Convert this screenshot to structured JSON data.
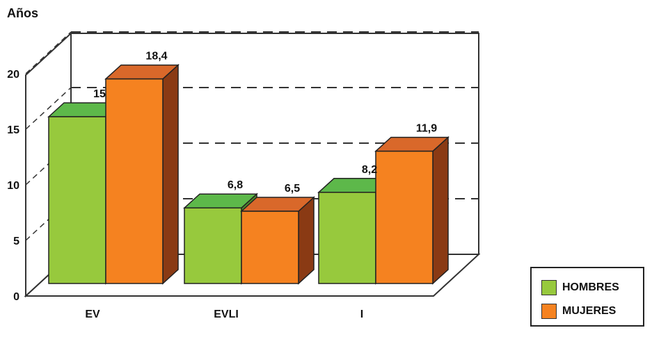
{
  "colors": {
    "hombres_front": "#97c93d",
    "hombres_top": "#5db84a",
    "hombres_side": "#4f8a2a",
    "mujeres_front": "#f58220",
    "mujeres_top": "#d9682a",
    "mujeres_side": "#8a3a14"
  },
  "chart_data": {
    "type": "bar",
    "ylabel": "Años",
    "ylim": [
      0,
      20
    ],
    "yticks": [
      0,
      5,
      10,
      15,
      20
    ],
    "grid": true,
    "legend_position": "bottom-right",
    "categories": [
      "EV",
      "EVLI",
      "I"
    ],
    "series": [
      {
        "name": "HOMBRES",
        "values": [
          15,
          6.8,
          8.2
        ],
        "labels": [
          "15",
          "6,8",
          "8,2"
        ]
      },
      {
        "name": "MUJERES",
        "values": [
          18.4,
          6.5,
          11.9
        ],
        "labels": [
          "18,4",
          "6,5",
          "11,9"
        ]
      }
    ]
  }
}
